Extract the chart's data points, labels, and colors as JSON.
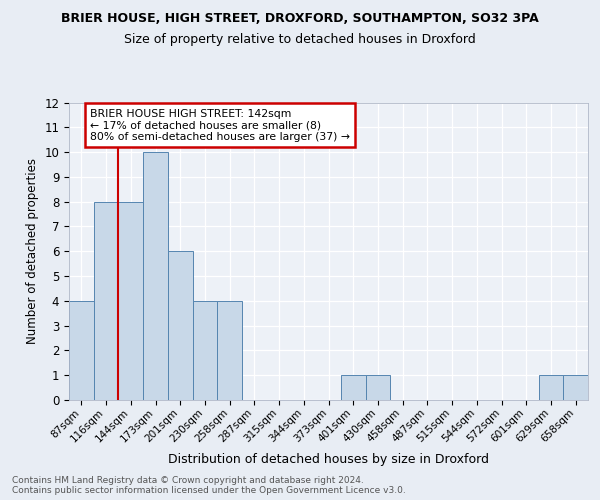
{
  "title1": "BRIER HOUSE, HIGH STREET, DROXFORD, SOUTHAMPTON, SO32 3PA",
  "title2": "Size of property relative to detached houses in Droxford",
  "xlabel": "Distribution of detached houses by size in Droxford",
  "ylabel": "Number of detached properties",
  "footnote": "Contains HM Land Registry data © Crown copyright and database right 2024.\nContains public sector information licensed under the Open Government Licence v3.0.",
  "bin_labels": [
    "87sqm",
    "116sqm",
    "144sqm",
    "173sqm",
    "201sqm",
    "230sqm",
    "258sqm",
    "287sqm",
    "315sqm",
    "344sqm",
    "373sqm",
    "401sqm",
    "430sqm",
    "458sqm",
    "487sqm",
    "515sqm",
    "544sqm",
    "572sqm",
    "601sqm",
    "629sqm",
    "658sqm"
  ],
  "bin_counts": [
    4,
    8,
    8,
    10,
    6,
    4,
    4,
    0,
    0,
    0,
    0,
    1,
    1,
    0,
    0,
    0,
    0,
    0,
    0,
    1,
    1
  ],
  "bar_color": "#c8d8e8",
  "bar_edge_color": "#5585b0",
  "subject_line_color": "#cc0000",
  "annotation_text": "BRIER HOUSE HIGH STREET: 142sqm\n← 17% of detached houses are smaller (8)\n80% of semi-detached houses are larger (37) →",
  "annotation_box_color": "#cc0000",
  "ylim": [
    0,
    12
  ],
  "yticks": [
    0,
    1,
    2,
    3,
    4,
    5,
    6,
    7,
    8,
    9,
    10,
    11,
    12
  ],
  "bg_color": "#e8edf4",
  "plot_bg_color": "#edf1f7"
}
